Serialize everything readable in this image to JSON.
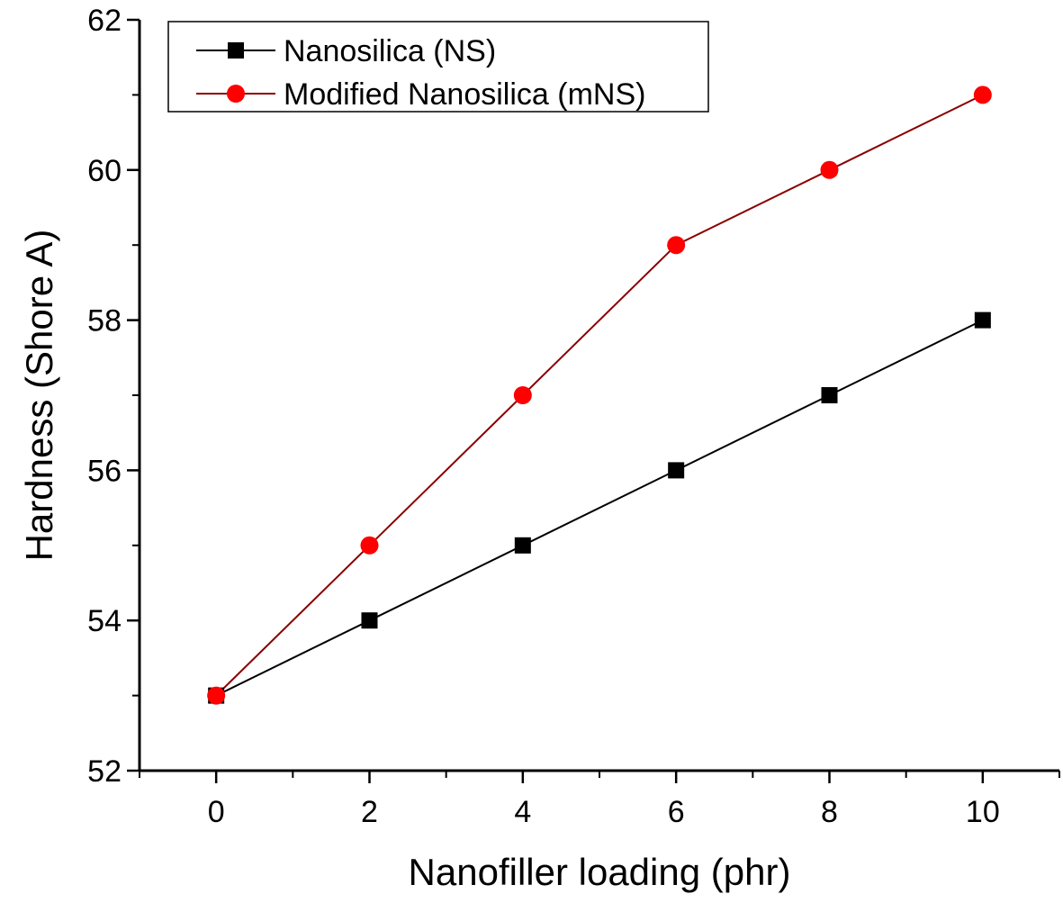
{
  "chart_data": {
    "type": "line",
    "title": "",
    "xlabel": "Nanofiller loading (phr)",
    "ylabel": "Hardness (Shore A)",
    "x": [
      0,
      2,
      4,
      6,
      8,
      10
    ],
    "xlim": [
      -1,
      11
    ],
    "ylim": [
      52,
      62
    ],
    "x_ticks": [
      "0",
      "2",
      "4",
      "6",
      "8",
      "10"
    ],
    "y_ticks": [
      "52",
      "54",
      "56",
      "58",
      "60",
      "62"
    ],
    "grid": false,
    "legend_position": "top-left",
    "series": [
      {
        "name": "Nanosilica (NS)",
        "values": [
          53,
          54,
          55,
          56,
          57,
          58
        ],
        "marker": "square",
        "color": "#000000",
        "line_color": "#000000"
      },
      {
        "name": "Modified Nanosilica (mNS)",
        "values": [
          53,
          55,
          57,
          59,
          60,
          61
        ],
        "marker": "circle",
        "color": "#ff0000",
        "line_color": "#8b0000"
      }
    ]
  }
}
